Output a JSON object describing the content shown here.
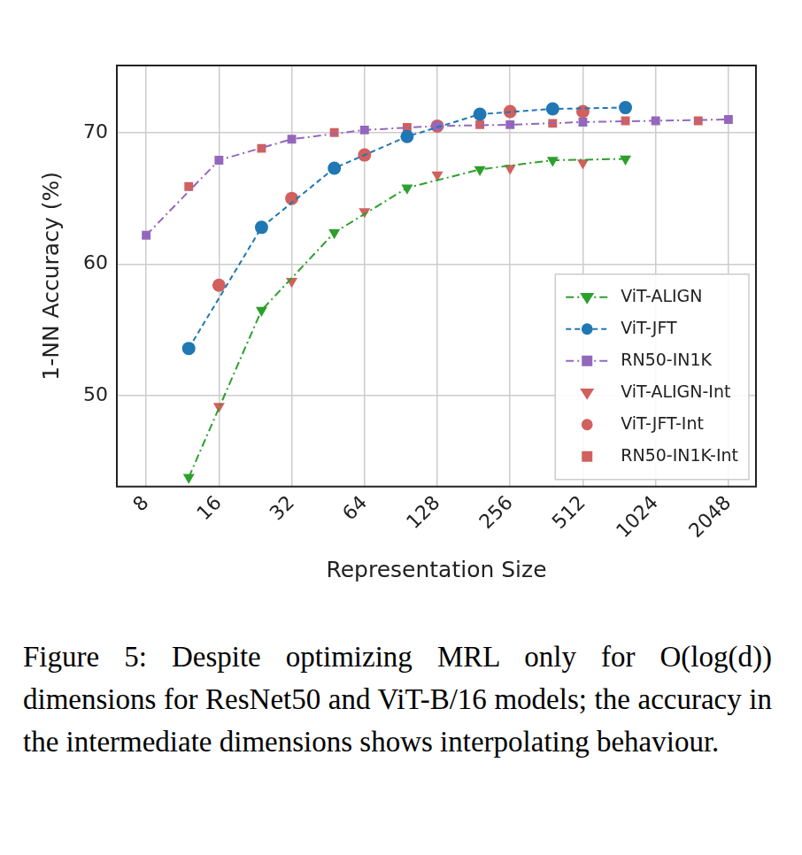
{
  "chart_data": {
    "type": "line",
    "x_label": "Representation Size",
    "y_label": "1-NN Accuracy (%)",
    "caption": "Figure 5: Despite optimizing MRL only for O(log(d)) dimensions for ResNet50 and ViT-B/16 models; the accuracy in the intermediate dimensions shows interpolating behaviour.",
    "log": "x",
    "grid": true,
    "legend": "lower right",
    "xlim": [
      6.05,
      2662
    ],
    "xticks": [
      8,
      16,
      32,
      64,
      128,
      256,
      512,
      1024,
      2048
    ],
    "ylim": [
      43.1,
      75.1
    ],
    "yticks": [
      50,
      60,
      70
    ],
    "series": [
      {
        "name": "ViT-ALIGN",
        "color": "#2ca02c",
        "marker": "triangle_down",
        "line_style": "dash-dot",
        "x": [
          12,
          24,
          48,
          96,
          192,
          384,
          768
        ],
        "values": [
          43.8,
          56.5,
          62.4,
          65.8,
          67.2,
          67.9,
          68.0
        ]
      },
      {
        "name": "ViT-JFT",
        "color": "#1f77b4",
        "marker": "circle",
        "line_style": "dashed",
        "x": [
          12,
          24,
          48,
          96,
          192,
          384,
          768
        ],
        "values": [
          53.6,
          62.8,
          67.3,
          69.7,
          71.4,
          71.8,
          71.9
        ]
      },
      {
        "name": "RN50-IN1K",
        "color": "#9467bd",
        "marker": "square",
        "line_style": "dash-dot",
        "x": [
          8,
          16,
          32,
          64,
          128,
          256,
          512,
          1024,
          2048
        ],
        "values": [
          62.2,
          67.9,
          69.5,
          70.2,
          70.5,
          70.6,
          70.8,
          70.9,
          71.0
        ]
      },
      {
        "name": "ViT-ALIGN-Int",
        "color": "#d1605e",
        "marker": "triangle_down",
        "line_style": "none",
        "x": [
          16,
          32,
          64,
          128,
          256,
          512
        ],
        "values": [
          49.2,
          58.7,
          64.0,
          66.8,
          67.3,
          67.7
        ]
      },
      {
        "name": "ViT-JFT-Int",
        "color": "#d1605e",
        "marker": "circle",
        "line_style": "none",
        "x": [
          16,
          32,
          64,
          128,
          256,
          512
        ],
        "values": [
          58.4,
          65.0,
          68.3,
          70.5,
          71.6,
          71.6
        ]
      },
      {
        "name": "RN50-IN1K-Int",
        "color": "#d1605e",
        "marker": "square",
        "line_style": "none",
        "x": [
          12,
          24,
          48,
          96,
          192,
          384,
          768,
          1536
        ],
        "values": [
          65.9,
          68.8,
          70.0,
          70.4,
          70.6,
          70.7,
          70.9,
          70.9
        ]
      }
    ]
  }
}
